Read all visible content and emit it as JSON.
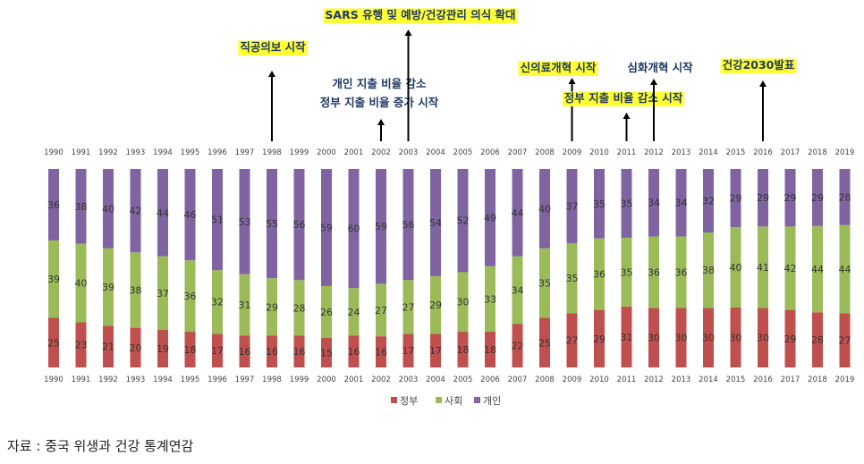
{
  "chart_data": {
    "type": "bar",
    "stacked": true,
    "percent_stacked": true,
    "categories": [
      "1990",
      "1991",
      "1992",
      "1993",
      "1994",
      "1995",
      "1996",
      "1997",
      "1998",
      "1999",
      "2000",
      "2001",
      "2002",
      "2003",
      "2004",
      "2005",
      "2006",
      "2007",
      "2008",
      "2009",
      "2010",
      "2011",
      "2012",
      "2013",
      "2014",
      "2015",
      "2016",
      "2017",
      "2018",
      "2019"
    ],
    "series": [
      {
        "name": "정부",
        "color": "#c0504d",
        "values": [
          25,
          23,
          21,
          20,
          19,
          18,
          17,
          16,
          16,
          16,
          15,
          16,
          16,
          17,
          17,
          18,
          18,
          22,
          25,
          27,
          29,
          31,
          30,
          30,
          30,
          30,
          30,
          29,
          28,
          27
        ]
      },
      {
        "name": "사회",
        "color": "#9bbb59",
        "values": [
          39,
          40,
          39,
          38,
          37,
          36,
          32,
          31,
          29,
          28,
          26,
          24,
          27,
          27,
          29,
          30,
          33,
          34,
          35,
          35,
          36,
          35,
          36,
          36,
          38,
          40,
          41,
          42,
          44,
          44
        ]
      },
      {
        "name": "개인",
        "color": "#8064a2",
        "values": [
          36,
          38,
          40,
          42,
          44,
          46,
          51,
          53,
          55,
          56,
          59,
          60,
          59,
          56,
          54,
          52,
          49,
          44,
          40,
          37,
          35,
          35,
          34,
          34,
          32,
          29,
          29,
          29,
          29,
          28
        ]
      }
    ],
    "legend_position": "bottom-center",
    "annotations": [
      {
        "year": "1998",
        "lines": [
          "직공의보 시작"
        ],
        "highlight": true
      },
      {
        "year": "2002",
        "lines": [
          "개인 지출 비율 감소",
          "정부 지출 비율 증가 시작"
        ],
        "highlight": false
      },
      {
        "year": "2003",
        "lines": [
          "SARS 유행 및 예방/건강관리 의식 확대"
        ],
        "highlight": true
      },
      {
        "year": "2009",
        "lines": [
          "신의료개혁 시작"
        ],
        "highlight": true
      },
      {
        "year": "2011",
        "lines": [
          "정부 지출 비율 감소 시작"
        ],
        "highlight": true
      },
      {
        "year": "2012",
        "lines": [
          "심화개혁 시작"
        ],
        "highlight": false
      },
      {
        "year": "2016",
        "lines": [
          "건강2030발표"
        ],
        "highlight": true
      }
    ],
    "highlight_color": "#ffff33",
    "annotation_text_color": "#1f3864"
  },
  "source": "자료 : 중국 위생과 건강 통계연감"
}
